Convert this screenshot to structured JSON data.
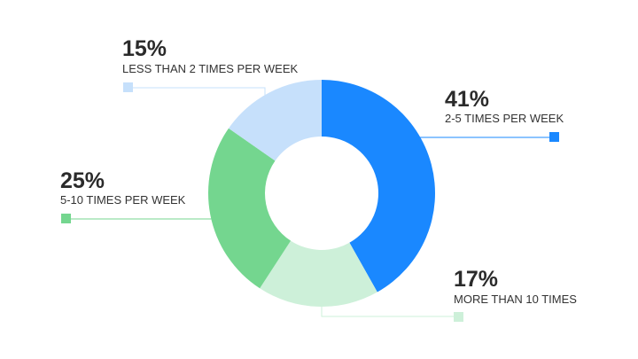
{
  "chart_data": {
    "type": "pie",
    "variant": "donut",
    "start_angle_deg": 0,
    "direction": "clockwise",
    "series": [
      {
        "name": "2-5 TIMES PER WEEK",
        "value": 41,
        "label": "41%",
        "color": "#1a88ff"
      },
      {
        "name": "MORE THAN 10 TIMES",
        "value": 17,
        "label": "17%",
        "color": "#cdf0d9"
      },
      {
        "name": "5-10 TIMES PER WEEK",
        "value": 25,
        "label": "25%",
        "color": "#74d68f"
      },
      {
        "name": "LESS THAN 2 TIMES PER WEEK",
        "value": 15,
        "label": "15%",
        "color": "#c6e0fb"
      }
    ]
  }
}
